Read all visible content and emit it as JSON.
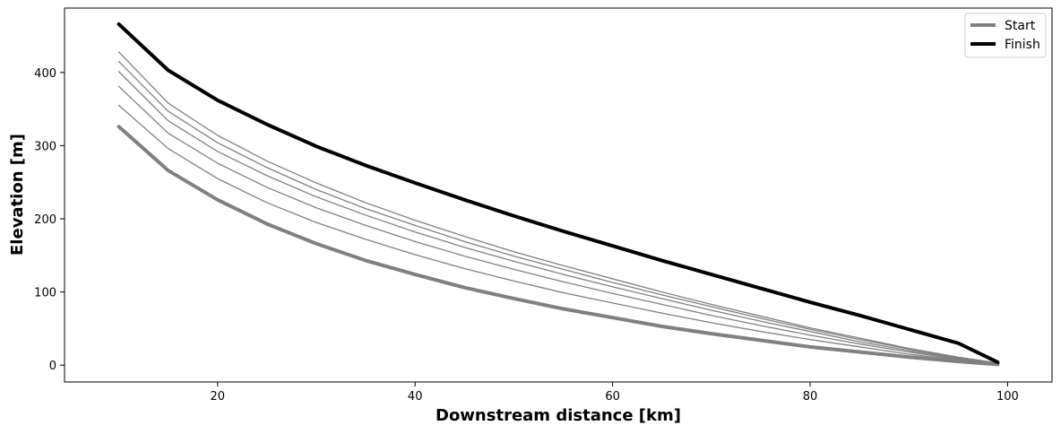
{
  "chart_data": {
    "type": "line",
    "title": "",
    "xlabel": "Downstream distance [km]",
    "ylabel": "Elevation [m]",
    "xlim": [
      4.5,
      104.5
    ],
    "ylim": [
      -23,
      488
    ],
    "xticks": [
      20,
      40,
      60,
      80,
      100
    ],
    "yticks": [
      0,
      100,
      200,
      300,
      400
    ],
    "grid": false,
    "legend": {
      "position": "top-right",
      "entries": [
        "Start",
        "Finish"
      ]
    },
    "x": [
      10,
      15,
      20,
      25,
      30,
      35,
      40,
      45,
      50,
      55,
      60,
      65,
      70,
      75,
      80,
      85,
      90,
      95,
      99
    ],
    "series": [
      {
        "name": "Start",
        "color": "#808080",
        "style": "thick",
        "values": [
          326,
          266,
          226,
          193,
          166,
          143,
          124,
          106,
          91,
          77,
          65,
          53,
          43,
          34,
          25,
          18,
          11,
          5,
          1
        ]
      },
      {
        "color": "#808080",
        "style": "thin",
        "values": [
          355,
          296,
          255,
          222,
          195,
          172,
          151,
          132,
          115,
          99,
          85,
          71,
          58,
          46,
          35,
          25,
          15,
          7,
          1
        ]
      },
      {
        "color": "#808080",
        "style": "thin",
        "values": [
          381,
          317,
          276,
          243,
          215,
          191,
          169,
          149,
          131,
          114,
          98,
          83,
          68,
          54,
          41,
          29,
          18,
          8,
          2
        ]
      },
      {
        "color": "#808080",
        "style": "thin",
        "values": [
          401,
          334,
          292,
          259,
          230,
          205,
          182,
          161,
          142,
          124,
          107,
          91,
          75,
          60,
          46,
          32,
          20,
          9,
          2
        ]
      },
      {
        "color": "#808080",
        "style": "thin",
        "values": [
          415,
          347,
          304,
          270,
          240,
          214,
          191,
          169,
          149,
          131,
          113,
          96,
          80,
          64,
          49,
          35,
          22,
          10,
          2
        ]
      },
      {
        "color": "#808080",
        "style": "thin",
        "values": [
          428,
          358,
          314,
          279,
          249,
          222,
          198,
          176,
          155,
          136,
          118,
          100,
          83,
          67,
          51,
          37,
          23,
          11,
          3
        ]
      },
      {
        "name": "Finish",
        "color": "#000000",
        "style": "thick",
        "values": [
          466,
          403,
          362,
          329,
          299,
          273,
          249,
          226,
          204,
          183,
          163,
          143,
          124,
          105,
          86,
          68,
          49,
          30,
          4
        ]
      }
    ]
  }
}
